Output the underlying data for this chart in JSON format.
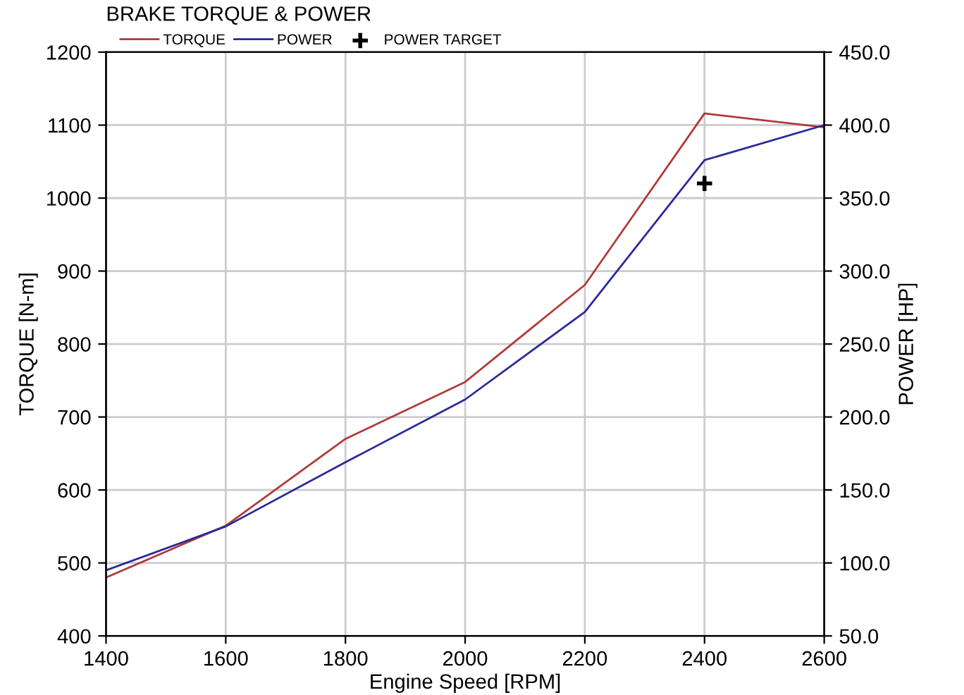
{
  "chart_data": {
    "type": "line",
    "title": "BRAKE TORQUE & POWER",
    "xlabel": "Engine Speed [RPM]",
    "ylabel": "TORQUE [N-m]",
    "y2label": "POWER [HP]",
    "x": [
      1400,
      1600,
      1800,
      2000,
      2200,
      2400,
      2600
    ],
    "series": [
      {
        "name": "TORQUE",
        "color": "#b03a3a",
        "values": [
          480,
          551,
          670,
          748,
          881,
          1116,
          1097
        ]
      },
      {
        "name": "POWER",
        "color": "#2a2a9a",
        "axis": "y2",
        "values": [
          95,
          125,
          169,
          212,
          272,
          376,
          400
        ]
      },
      {
        "name": "POWER TARGET",
        "color": "#000000",
        "axis": "y2",
        "type": "scatter",
        "marker": "cross",
        "x": [
          2400
        ],
        "values": [
          360
        ]
      }
    ],
    "xlim": [
      1400,
      2600
    ],
    "xticks": [
      1400,
      1600,
      1800,
      2000,
      2200,
      2400,
      2600
    ],
    "ylim": [
      400,
      1200
    ],
    "yticks": [
      400,
      500,
      600,
      700,
      800,
      900,
      1000,
      1100,
      1200
    ],
    "y2lim": [
      50,
      450
    ],
    "y2ticks": [
      {
        "value": 50,
        "label": "50.0"
      },
      {
        "value": 100,
        "label": "100.0"
      },
      {
        "value": 150,
        "label": "150.0"
      },
      {
        "value": 200,
        "label": "200.0"
      },
      {
        "value": 250,
        "label": "250.0"
      },
      {
        "value": 300,
        "label": "300.0"
      },
      {
        "value": 350,
        "label": "350.0"
      },
      {
        "value": 400,
        "label": "400.0"
      },
      {
        "value": 450,
        "label": "450.0"
      }
    ],
    "grid": true,
    "legend": "top left"
  }
}
